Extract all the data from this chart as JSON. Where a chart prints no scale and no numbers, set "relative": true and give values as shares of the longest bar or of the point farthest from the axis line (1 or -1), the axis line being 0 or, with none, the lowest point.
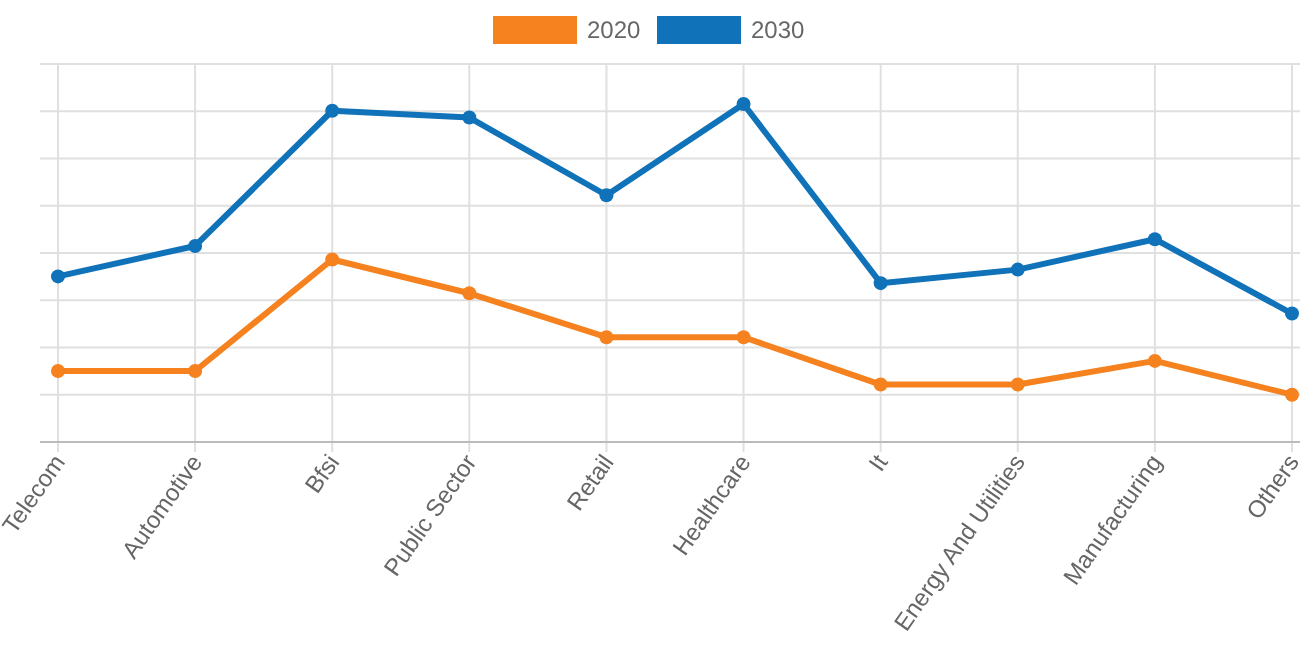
{
  "chart_data": {
    "type": "line",
    "relative": true,
    "grid": true,
    "legend": "top",
    "marker": "circle",
    "line_style": "solid",
    "categories": [
      "Telecom",
      "Automotive",
      "Bfsi",
      "Public Sector",
      "Retail",
      "Healthcare",
      "It",
      "Energy And Utilities",
      "Manufacturing",
      "Others"
    ],
    "series": [
      {
        "name": "2020",
        "color": "#f5821f",
        "values": [
          0.21,
          0.21,
          0.54,
          0.44,
          0.31,
          0.31,
          0.17,
          0.17,
          0.24,
          0.14
        ]
      },
      {
        "name": "2030",
        "color": "#1072b8",
        "values": [
          0.49,
          0.58,
          0.98,
          0.96,
          0.73,
          1,
          0.47,
          0.51,
          0.6,
          0.38
        ]
      }
    ]
  }
}
